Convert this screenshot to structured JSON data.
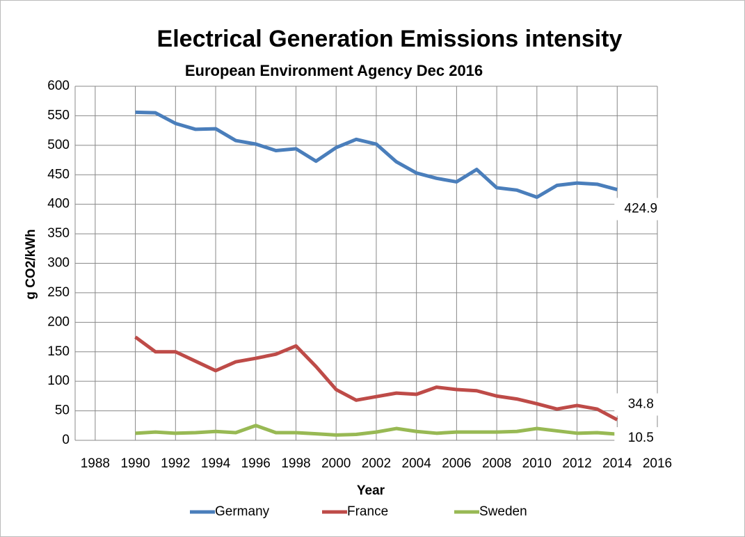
{
  "chart_data": {
    "type": "line",
    "title": "Electrical Generation Emissions intensity",
    "subtitle": "European Environment  Agency Dec 2016",
    "x_label": "Year",
    "y_label": "g CO2/kWh",
    "x": [
      1990,
      1991,
      1992,
      1993,
      1994,
      1995,
      1996,
      1997,
      1998,
      1999,
      2000,
      2001,
      2002,
      2003,
      2004,
      2005,
      2006,
      2007,
      2008,
      2009,
      2010,
      2011,
      2012,
      2013,
      2014
    ],
    "series": [
      {
        "name": "Germany",
        "color": "#4a7ebb",
        "values": [
          556,
          555,
          537,
          527,
          528,
          508,
          502,
          491,
          494,
          473,
          496,
          510,
          502,
          472,
          453,
          444,
          438,
          459,
          428,
          424,
          412,
          432,
          436,
          434,
          424.9
        ]
      },
      {
        "name": "France",
        "color": "#be4b48",
        "values": [
          175,
          150,
          150,
          134,
          118,
          133,
          139,
          146,
          160,
          125,
          86,
          68,
          74,
          80,
          78,
          90,
          86,
          84,
          75,
          70,
          62,
          53,
          59,
          53,
          34.8
        ]
      },
      {
        "name": "Sweden",
        "color": "#98b954",
        "values": [
          12,
          14,
          12,
          13,
          15,
          13,
          25,
          13,
          13,
          11,
          9,
          10,
          14,
          20,
          15,
          12,
          14,
          14,
          14,
          15,
          20,
          16,
          12,
          13,
          10.5
        ]
      }
    ],
    "xlim": [
      1987,
      2016
    ],
    "xticks": [
      1988,
      1990,
      1992,
      1994,
      1996,
      1998,
      2000,
      2002,
      2004,
      2006,
      2008,
      2010,
      2012,
      2014,
      2016
    ],
    "ylim": [
      0,
      600
    ],
    "yticks": [
      0,
      50,
      100,
      150,
      200,
      250,
      300,
      350,
      400,
      450,
      500,
      550,
      600
    ],
    "grid": true,
    "legend": "bottom"
  }
}
